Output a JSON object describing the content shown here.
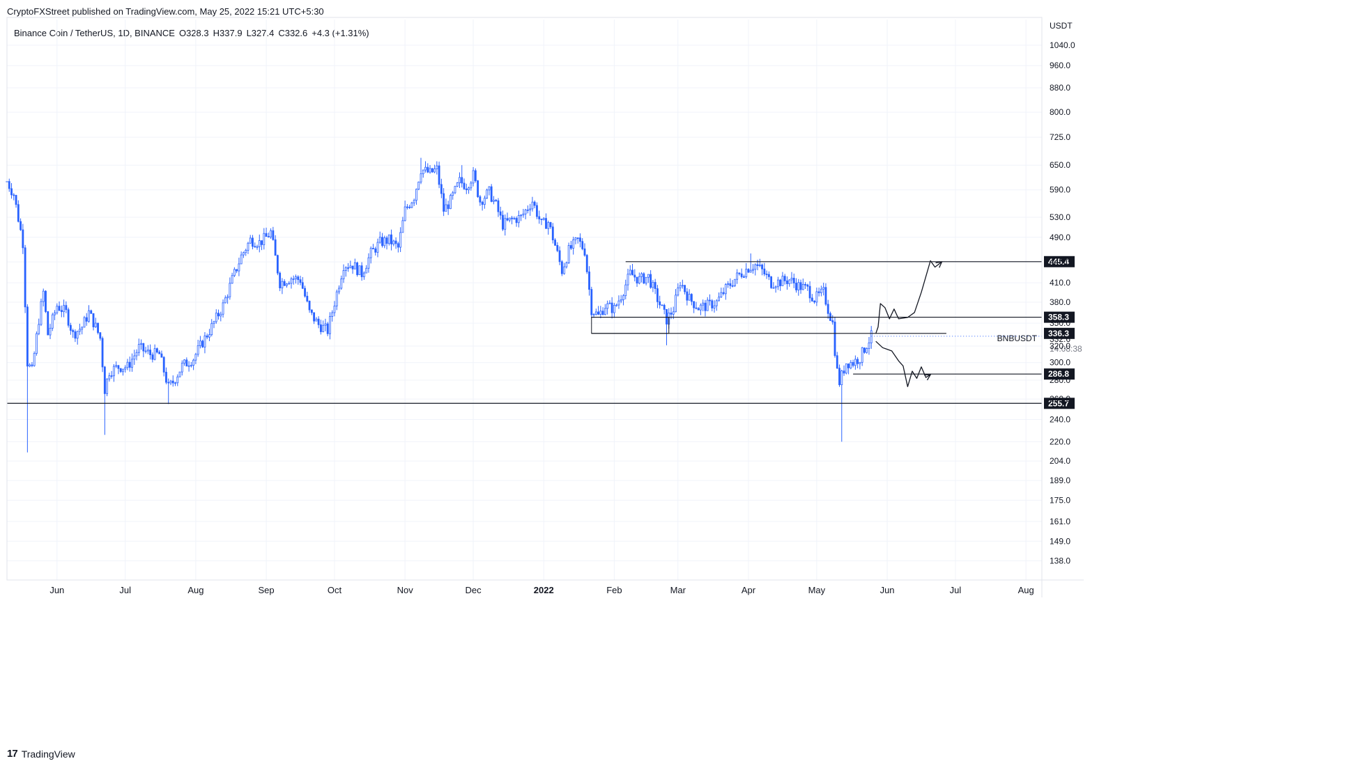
{
  "publisher": {
    "text": "CryptoFXStreet published on TradingView.com, May 25, 2022 15:21 UTC+5:30"
  },
  "symbol": {
    "name": "Binance Coin / TetherUS, 1D, BINANCE",
    "open": "O328.3",
    "high": "H337.9",
    "low": "L327.4",
    "close": "C332.6",
    "change": "+4.3 (+1.31%)"
  },
  "footer": {
    "brand": "TradingView",
    "logo": "tradingview-logo-icon"
  },
  "colors": {
    "up": "#ffffff",
    "down": "#2962ff",
    "wick": "#2962ff",
    "grid": "#f0f3fa",
    "axis": "#e0e3eb",
    "label_bg": "#131722"
  },
  "chart_data": {
    "type": "candlestick",
    "title": "",
    "y_scale": "log",
    "y_unit": "USDT",
    "ylim": [
      128,
      1150
    ],
    "x_range": [
      "2021-05-10",
      "2022-08-08"
    ],
    "y_ticks": [
      "1040.0",
      "960.0",
      "880.0",
      "800.0",
      "725.0",
      "650.0",
      "590.0",
      "530.0",
      "490.0",
      "445.0",
      "410.0",
      "380.0",
      "350.0",
      "320.0",
      "300.0",
      "280.0",
      "260.0",
      "240.0",
      "220.0",
      "204.0",
      "189.0",
      "175.0",
      "161.0",
      "149.0",
      "138.0"
    ],
    "x_ticks": [
      {
        "label": "Jun",
        "date": "2021-06-01"
      },
      {
        "label": "Jul",
        "date": "2021-07-01"
      },
      {
        "label": "Aug",
        "date": "2021-08-01"
      },
      {
        "label": "Sep",
        "date": "2021-09-01"
      },
      {
        "label": "Oct",
        "date": "2021-10-01"
      },
      {
        "label": "Nov",
        "date": "2021-11-01"
      },
      {
        "label": "Dec",
        "date": "2021-12-01"
      },
      {
        "label": "2022",
        "date": "2022-01-01",
        "bold": true
      },
      {
        "label": "Feb",
        "date": "2022-02-01"
      },
      {
        "label": "Mar",
        "date": "2022-03-01"
      },
      {
        "label": "Apr",
        "date": "2022-04-01"
      },
      {
        "label": "May",
        "date": "2022-05-01"
      },
      {
        "label": "Jun",
        "date": "2022-06-01"
      },
      {
        "label": "Jul",
        "date": "2022-07-01"
      },
      {
        "label": "Aug",
        "date": "2022-08-01"
      }
    ],
    "candles_start": "2021-05-10",
    "candles_end": "2022-05-25",
    "candles_close_path": [
      [
        "2021-05-10",
        610
      ],
      [
        "2021-05-13",
        580
      ],
      [
        "2021-05-17",
        480
      ],
      [
        "2021-05-19",
        300
      ],
      [
        "2021-05-21",
        290
      ],
      [
        "2021-05-24",
        355
      ],
      [
        "2021-05-26",
        395
      ],
      [
        "2021-05-28",
        335
      ],
      [
        "2021-06-01",
        375
      ],
      [
        "2021-06-05",
        365
      ],
      [
        "2021-06-08",
        335
      ],
      [
        "2021-06-12",
        345
      ],
      [
        "2021-06-15",
        365
      ],
      [
        "2021-06-18",
        345
      ],
      [
        "2021-06-20",
        330
      ],
      [
        "2021-06-22",
        270
      ],
      [
        "2021-06-24",
        290
      ],
      [
        "2021-06-28",
        295
      ],
      [
        "2021-07-02",
        295
      ],
      [
        "2021-07-07",
        318
      ],
      [
        "2021-07-12",
        310
      ],
      [
        "2021-07-16",
        310
      ],
      [
        "2021-07-20",
        272
      ],
      [
        "2021-07-22",
        278
      ],
      [
        "2021-07-26",
        296
      ],
      [
        "2021-07-31",
        305
      ],
      [
        "2021-08-03",
        320
      ],
      [
        "2021-08-08",
        345
      ],
      [
        "2021-08-13",
        375
      ],
      [
        "2021-08-17",
        415
      ],
      [
        "2021-08-21",
        455
      ],
      [
        "2021-08-25",
        485
      ],
      [
        "2021-08-29",
        480
      ],
      [
        "2021-09-01",
        490
      ],
      [
        "2021-09-03",
        500
      ],
      [
        "2021-09-07",
        410
      ],
      [
        "2021-09-12",
        418
      ],
      [
        "2021-09-16",
        415
      ],
      [
        "2021-09-20",
        365
      ],
      [
        "2021-09-24",
        348
      ],
      [
        "2021-09-28",
        340
      ],
      [
        "2021-10-01",
        380
      ],
      [
        "2021-10-05",
        440
      ],
      [
        "2021-10-09",
        440
      ],
      [
        "2021-10-13",
        425
      ],
      [
        "2021-10-17",
        460
      ],
      [
        "2021-10-21",
        480
      ],
      [
        "2021-10-25",
        485
      ],
      [
        "2021-10-29",
        470
      ],
      [
        "2021-11-01",
        545
      ],
      [
        "2021-11-05",
        575
      ],
      [
        "2021-11-08",
        640
      ],
      [
        "2021-11-12",
        630
      ],
      [
        "2021-11-15",
        640
      ],
      [
        "2021-11-18",
        545
      ],
      [
        "2021-11-21",
        565
      ],
      [
        "2021-11-25",
        610
      ],
      [
        "2021-11-28",
        600
      ],
      [
        "2021-12-01",
        625
      ],
      [
        "2021-12-04",
        565
      ],
      [
        "2021-12-08",
        585
      ],
      [
        "2021-12-11",
        555
      ],
      [
        "2021-12-14",
        515
      ],
      [
        "2021-12-18",
        525
      ],
      [
        "2021-12-22",
        530
      ],
      [
        "2021-12-27",
        565
      ],
      [
        "2021-12-31",
        515
      ],
      [
        "2022-01-03",
        520
      ],
      [
        "2022-01-06",
        475
      ],
      [
        "2022-01-09",
        430
      ],
      [
        "2022-01-12",
        465
      ],
      [
        "2022-01-16",
        485
      ],
      [
        "2022-01-19",
        465
      ],
      [
        "2022-01-22",
        370
      ],
      [
        "2022-01-25",
        360
      ],
      [
        "2022-01-28",
        375
      ],
      [
        "2022-02-01",
        370
      ],
      [
        "2022-02-04",
        390
      ],
      [
        "2022-02-08",
        425
      ],
      [
        "2022-02-12",
        415
      ],
      [
        "2022-02-16",
        420
      ],
      [
        "2022-02-20",
        385
      ],
      [
        "2022-02-24",
        355
      ],
      [
        "2022-02-27",
        370
      ],
      [
        "2022-03-02",
        412
      ],
      [
        "2022-03-06",
        385
      ],
      [
        "2022-03-10",
        372
      ],
      [
        "2022-03-14",
        375
      ],
      [
        "2022-03-18",
        380
      ],
      [
        "2022-03-22",
        400
      ],
      [
        "2022-03-27",
        420
      ],
      [
        "2022-04-01",
        435
      ],
      [
        "2022-04-04",
        440
      ],
      [
        "2022-04-07",
        430
      ],
      [
        "2022-04-11",
        410
      ],
      [
        "2022-04-15",
        412
      ],
      [
        "2022-04-19",
        415
      ],
      [
        "2022-04-23",
        405
      ],
      [
        "2022-04-27",
        400
      ],
      [
        "2022-04-30",
        385
      ],
      [
        "2022-05-04",
        395
      ],
      [
        "2022-05-06",
        370
      ],
      [
        "2022-05-08",
        350
      ],
      [
        "2022-05-09",
        315
      ],
      [
        "2022-05-10",
        290
      ],
      [
        "2022-05-11",
        278
      ],
      [
        "2022-05-12",
        285
      ],
      [
        "2022-05-14",
        300
      ],
      [
        "2022-05-17",
        300
      ],
      [
        "2022-05-20",
        306
      ],
      [
        "2022-05-23",
        322
      ],
      [
        "2022-05-25",
        332.6
      ]
    ],
    "wick_extremes": [
      {
        "date": "2021-05-19",
        "low": 211
      },
      {
        "date": "2021-06-22",
        "low": 226
      },
      {
        "date": "2021-07-20",
        "low": 255
      },
      {
        "date": "2022-02-24",
        "low": 321
      },
      {
        "date": "2022-05-12",
        "low": 220
      },
      {
        "date": "2021-11-08",
        "high": 669
      },
      {
        "date": "2021-11-26",
        "high": 650
      },
      {
        "date": "2022-04-02",
        "high": 460
      }
    ],
    "horizontal_levels": [
      {
        "value": 445.4,
        "label": "445.4",
        "from": "2022-02-06"
      },
      {
        "value": 358.3,
        "label": "358.3",
        "from": "2022-01-22"
      },
      {
        "value": 336.3,
        "label": "336.3",
        "from": "2022-01-22"
      },
      {
        "value": 286.8,
        "label": "286.8",
        "from": "2022-05-17"
      },
      {
        "value": 255.7,
        "label": "255.7",
        "from": "2021-05-10"
      }
    ],
    "consolidation_box": {
      "from": "2022-01-22",
      "to": "2022-02-25",
      "top": 358.3,
      "bottom": 336.3
    },
    "last_price": {
      "value": 332.6,
      "label": "332.6",
      "countdown": "14:08:38",
      "series": "BNBUSDT"
    },
    "projection_up": [
      [
        "2022-05-27",
        336
      ],
      [
        "2022-05-28",
        345
      ],
      [
        "2022-05-29",
        378
      ],
      [
        "2022-05-31",
        372
      ],
      [
        "2022-06-02",
        356
      ],
      [
        "2022-06-04",
        370
      ],
      [
        "2022-06-06",
        356
      ],
      [
        "2022-06-10",
        358
      ],
      [
        "2022-06-13",
        365
      ],
      [
        "2022-06-16",
        395
      ],
      [
        "2022-06-20",
        447
      ],
      [
        "2022-06-22",
        436
      ],
      [
        "2022-06-25",
        445
      ]
    ],
    "projection_down": [
      [
        "2022-05-27",
        326
      ],
      [
        "2022-05-30",
        318
      ],
      [
        "2022-06-03",
        314
      ],
      [
        "2022-06-06",
        302
      ],
      [
        "2022-06-08",
        296
      ],
      [
        "2022-06-10",
        273
      ],
      [
        "2022-06-12",
        290
      ],
      [
        "2022-06-14",
        282
      ],
      [
        "2022-06-16",
        295
      ],
      [
        "2022-06-18",
        283
      ],
      [
        "2022-06-20",
        286
      ]
    ]
  }
}
